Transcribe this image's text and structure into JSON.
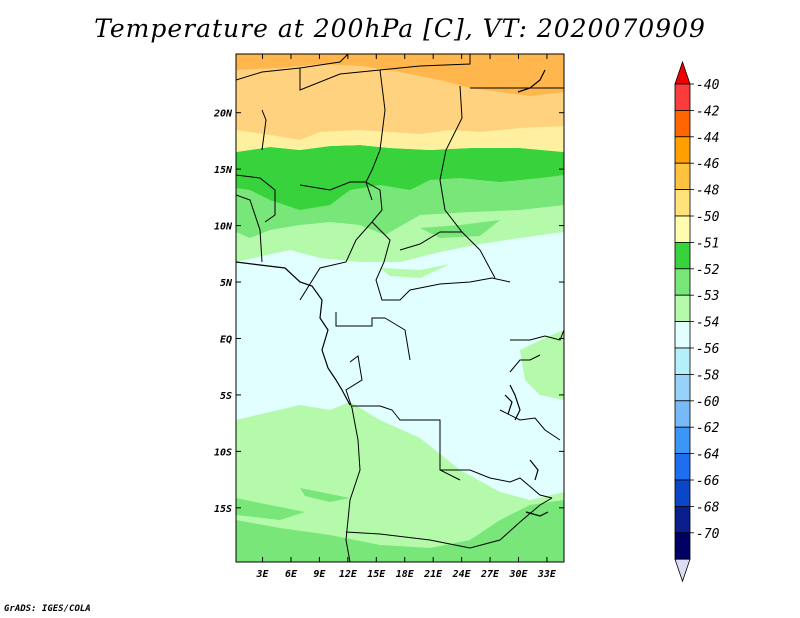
{
  "title": "Temperature at 200hPa [C], VT: 2020070909",
  "credit": "GrADS: IGES/COLA",
  "map": {
    "lon_labels": [
      "3E",
      "6E",
      "9E",
      "12E",
      "15E",
      "18E",
      "21E",
      "24E",
      "27E",
      "30E",
      "33E"
    ],
    "lon_values": [
      3,
      6,
      9,
      12,
      15,
      18,
      21,
      24,
      27,
      30,
      33
    ],
    "lat_labels": [
      "20N",
      "15N",
      "10N",
      "5N",
      "EQ",
      "5S",
      "10S",
      "15S"
    ],
    "lat_values": [
      20,
      15,
      10,
      5,
      0,
      -5,
      -10,
      -15
    ],
    "lon_range": [
      0.2,
      34.8
    ],
    "lat_range": [
      -19.8,
      25.2
    ]
  },
  "colorbar": {
    "labels": [
      "-40",
      "-42",
      "-44",
      "-46",
      "-48",
      "-50",
      "-51",
      "-52",
      "-53",
      "-54",
      "-56",
      "-58",
      "-60",
      "-62",
      "-64",
      "-66",
      "-68",
      "-70"
    ],
    "colors": [
      "#f00000",
      "#fa3c3c",
      "#ff6600",
      "#ffa000",
      "#ffc23f",
      "#ffe37a",
      "#fffcb0",
      "#37d23c",
      "#78e678",
      "#b4faaa",
      "#e1ffff",
      "#b4f0fa",
      "#96d2fa",
      "#78b9fa",
      "#3c96f5",
      "#1e6ef0",
      "#0a46c8",
      "#0a1e8c",
      "#000064",
      "#dcdcf5"
    ]
  },
  "colors": {
    "warm_deep": "#ffb74d",
    "warm_mid": "#ffd27f",
    "warm_light": "#fff0a0",
    "green_dark": "#37d23c",
    "green_mid": "#78e678",
    "green_light": "#b4faaa",
    "cyan_light": "#e1ffff"
  }
}
